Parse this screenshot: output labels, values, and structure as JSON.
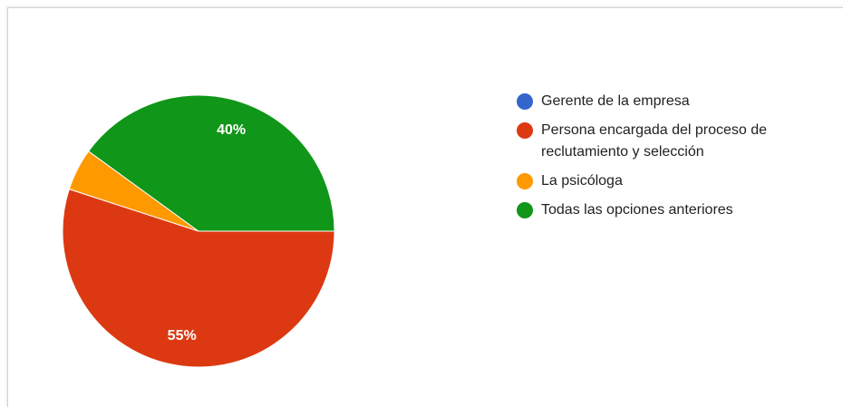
{
  "chart_data": {
    "type": "pie",
    "categories": [
      "Gerente de la empresa",
      "Persona encargada del proceso de reclutamiento y selección",
      "La psicóloga",
      "Todas las opciones anteriores"
    ],
    "values": [
      0,
      55,
      5,
      40
    ],
    "value_labels": [
      null,
      "55%",
      null,
      "40%"
    ],
    "colors": [
      "#3366cc",
      "#dc3912",
      "#ff9900",
      "#109618"
    ],
    "legend": "right"
  }
}
